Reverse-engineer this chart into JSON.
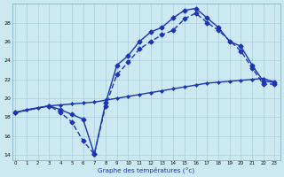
{
  "xlabel": "Graphe des températures (°c)",
  "background_color": "#cce8f0",
  "grid_color": "#aacfdd",
  "line_color": "#1a35b5",
  "xlim_min": -0.3,
  "xlim_max": 23.5,
  "ylim_min": 13.5,
  "ylim_max": 30.0,
  "xticks": [
    0,
    1,
    2,
    3,
    4,
    5,
    6,
    7,
    8,
    9,
    10,
    11,
    12,
    13,
    14,
    15,
    16,
    17,
    18,
    19,
    20,
    21,
    22,
    23
  ],
  "yticks": [
    14,
    16,
    18,
    20,
    22,
    24,
    26,
    28
  ],
  "series_straight_x": [
    0,
    1,
    2,
    3,
    4,
    5,
    6,
    7,
    8,
    9,
    10,
    11,
    12,
    13,
    14,
    15,
    16,
    17,
    18,
    19,
    20,
    21,
    22,
    23
  ],
  "series_straight_y": [
    18.5,
    18.8,
    19.0,
    19.2,
    19.3,
    19.4,
    19.5,
    19.6,
    19.8,
    20.0,
    20.2,
    20.4,
    20.6,
    20.8,
    21.0,
    21.2,
    21.4,
    21.6,
    21.7,
    21.8,
    21.9,
    22.0,
    22.1,
    21.7
  ],
  "series_dip_dashed_x": [
    0,
    3,
    4,
    5,
    6,
    7,
    8,
    9,
    10,
    11,
    12,
    13,
    14,
    15,
    16,
    17,
    18,
    20,
    21,
    22,
    23
  ],
  "series_dip_dashed_y": [
    18.5,
    19.2,
    18.5,
    17.5,
    15.5,
    14.1,
    19.2,
    22.5,
    23.8,
    25.2,
    26.0,
    26.7,
    27.2,
    28.4,
    29.0,
    28.0,
    27.2,
    25.0,
    23.2,
    21.5,
    21.5
  ],
  "series_dip_solid_x": [
    0,
    3,
    4,
    5,
    6,
    7,
    8,
    9,
    10,
    11,
    12,
    13,
    14,
    15,
    16,
    17,
    18,
    19,
    20,
    21,
    22,
    23
  ],
  "series_dip_solid_y": [
    18.5,
    19.2,
    18.8,
    18.3,
    17.8,
    14.1,
    19.5,
    23.5,
    24.5,
    26.0,
    27.0,
    27.5,
    28.5,
    29.3,
    29.5,
    28.5,
    27.5,
    26.0,
    25.5,
    23.5,
    21.8,
    21.7
  ]
}
